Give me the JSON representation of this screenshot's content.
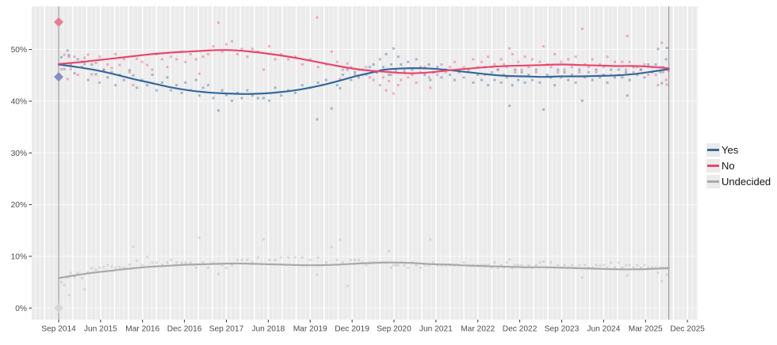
{
  "chart_data": {
    "type": "scatter",
    "title": "",
    "description": "Polling scatter with smoothed trend lines, Yes / No / Undecided, Sep 2014 - Dec 2025",
    "x_axis": {
      "tick_labels": [
        "Sep 2014",
        "Jun 2015",
        "Mar 2016",
        "Dec 2016",
        "Sep 2017",
        "Jun 2018",
        "Mar 2019",
        "Dec 2019",
        "Sep 2020",
        "Jun 2021",
        "Mar 2022",
        "Dec 2022",
        "Sep 2023",
        "Jun 2024",
        "Mar 2025",
        "Dec 2025"
      ],
      "tick_interval_months": 9,
      "minor_grid": "monthly",
      "major_grid": "quarterly"
    },
    "y_axis": {
      "tick_labels": [
        "0%",
        "10%",
        "20%",
        "30%",
        "40%",
        "50%"
      ],
      "tick_values": [
        0,
        10,
        20,
        30,
        40,
        50
      ],
      "range_pct": [
        -2.5,
        58.3
      ]
    },
    "legend": {
      "position": "right",
      "entries": [
        "Yes",
        "No",
        "Undecided"
      ]
    },
    "colors": {
      "panel_bg": "#ebebeb",
      "grid": "#ffffff",
      "axis_text": "#4d4d4d",
      "tick_mark": "#333333",
      "reference_line": "#9b9b9b",
      "legend_text": "#141414",
      "legend_key_bg": "#ebebeb"
    },
    "series": [
      {
        "name": "Yes",
        "color": "#36689b",
        "point_opacity": 0.42,
        "marker_color": "#7f8bc0",
        "trend": [
          [
            0,
            47.1
          ],
          [
            4,
            46.6
          ],
          [
            8,
            46.0
          ],
          [
            12,
            45.2
          ],
          [
            16,
            44.3
          ],
          [
            20,
            43.5
          ],
          [
            24,
            42.7
          ],
          [
            28,
            42.1
          ],
          [
            32,
            41.7
          ],
          [
            36,
            41.5
          ],
          [
            40,
            41.4
          ],
          [
            44,
            41.5
          ],
          [
            48,
            41.8
          ],
          [
            52,
            42.3
          ],
          [
            56,
            43.0
          ],
          [
            60,
            43.9
          ],
          [
            64,
            44.9
          ],
          [
            67,
            45.5
          ],
          [
            70,
            46.1
          ],
          [
            73,
            46.3
          ],
          [
            76,
            46.4
          ],
          [
            80,
            46.3
          ],
          [
            84,
            46.0
          ],
          [
            88,
            45.6
          ],
          [
            92,
            45.2
          ],
          [
            96,
            44.9
          ],
          [
            100,
            44.8
          ],
          [
            104,
            44.7
          ],
          [
            108,
            44.8
          ],
          [
            112,
            44.8
          ],
          [
            116,
            44.9
          ],
          [
            120,
            45.0
          ],
          [
            124,
            45.3
          ],
          [
            128,
            45.8
          ],
          [
            131,
            46.2
          ]
        ]
      },
      {
        "name": "No",
        "color": "#e8476f",
        "point_opacity": 0.4,
        "marker_color": "#e8788e",
        "trend": [
          [
            0,
            47.2
          ],
          [
            4,
            47.5
          ],
          [
            8,
            47.9
          ],
          [
            12,
            48.3
          ],
          [
            16,
            48.7
          ],
          [
            20,
            49.1
          ],
          [
            24,
            49.4
          ],
          [
            28,
            49.6
          ],
          [
            32,
            49.8
          ],
          [
            36,
            49.9
          ],
          [
            40,
            49.7
          ],
          [
            44,
            49.3
          ],
          [
            48,
            48.8
          ],
          [
            52,
            48.2
          ],
          [
            56,
            47.5
          ],
          [
            60,
            46.8
          ],
          [
            64,
            46.2
          ],
          [
            67,
            45.9
          ],
          [
            70,
            45.7
          ],
          [
            73,
            45.5
          ],
          [
            76,
            45.4
          ],
          [
            80,
            45.6
          ],
          [
            84,
            46.0
          ],
          [
            88,
            46.3
          ],
          [
            92,
            46.6
          ],
          [
            96,
            46.8
          ],
          [
            100,
            46.9
          ],
          [
            104,
            47.0
          ],
          [
            108,
            47.1
          ],
          [
            112,
            47.0
          ],
          [
            116,
            46.9
          ],
          [
            120,
            46.8
          ],
          [
            124,
            46.8
          ],
          [
            128,
            46.6
          ],
          [
            131,
            46.35
          ]
        ]
      },
      {
        "name": "Undecided",
        "color": "#a9a9a9",
        "point_opacity": 0.35,
        "marker_color": "#d6d6d6",
        "trend": [
          [
            0,
            5.8
          ],
          [
            4,
            6.4
          ],
          [
            8,
            6.9
          ],
          [
            12,
            7.3
          ],
          [
            16,
            7.7
          ],
          [
            20,
            8.0
          ],
          [
            24,
            8.2
          ],
          [
            28,
            8.4
          ],
          [
            32,
            8.5
          ],
          [
            36,
            8.6
          ],
          [
            40,
            8.6
          ],
          [
            44,
            8.5
          ],
          [
            48,
            8.4
          ],
          [
            52,
            8.3
          ],
          [
            56,
            8.3
          ],
          [
            60,
            8.4
          ],
          [
            64,
            8.6
          ],
          [
            67,
            8.7
          ],
          [
            70,
            8.8
          ],
          [
            73,
            8.8
          ],
          [
            76,
            8.7
          ],
          [
            80,
            8.5
          ],
          [
            84,
            8.4
          ],
          [
            88,
            8.2
          ],
          [
            92,
            8.1
          ],
          [
            96,
            8.0
          ],
          [
            100,
            7.9
          ],
          [
            104,
            7.9
          ],
          [
            108,
            7.8
          ],
          [
            112,
            7.7
          ],
          [
            116,
            7.6
          ],
          [
            120,
            7.5
          ],
          [
            124,
            7.5
          ],
          [
            128,
            7.6
          ],
          [
            131,
            7.7
          ]
        ]
      }
    ],
    "polls_note": "each poll = [months_after_Sep2014, Yes%, No%, Undecided%]",
    "polls": [
      [
        0.6,
        48.5,
        46.2,
        5.0
      ],
      [
        1.2,
        46.2,
        49.0,
        4.5
      ],
      [
        1.9,
        49.8,
        44.3,
        5.9
      ],
      [
        2.2,
        48.9,
        48.6,
        2.5
      ],
      [
        2.6,
        47.0,
        46.2,
        6.8
      ],
      [
        3.4,
        45.4,
        48.6,
        6.0
      ],
      [
        4.1,
        48.1,
        45.1,
        6.8
      ],
      [
        5.0,
        46.6,
        47.6,
        5.8
      ],
      [
        5.6,
        47.2,
        48.4,
        3.6
      ],
      [
        6.3,
        44.1,
        49.0,
        6.9
      ],
      [
        7.1,
        47.1,
        45.2,
        7.7
      ],
      [
        8.0,
        45.2,
        47.4,
        7.4
      ],
      [
        8.8,
        43.6,
        48.6,
        7.8
      ],
      [
        9.7,
        46.1,
        46.0,
        7.9
      ],
      [
        10.5,
        44.6,
        47.1,
        8.3
      ],
      [
        11.4,
        45.6,
        46.4,
        8.0
      ],
      [
        12.2,
        43.1,
        49.1,
        7.8
      ],
      [
        13.1,
        45.1,
        47.0,
        7.9
      ],
      [
        14.0,
        44.1,
        48.1,
        7.8
      ],
      [
        15.2,
        46.0,
        45.6,
        8.4
      ],
      [
        16.0,
        45.0,
        43.1,
        11.9
      ],
      [
        16.8,
        42.6,
        48.2,
        9.2
      ],
      [
        17.9,
        44.1,
        47.6,
        8.3
      ],
      [
        19.0,
        43.1,
        47.0,
        9.9
      ],
      [
        20.1,
        45.1,
        46.1,
        8.8
      ],
      [
        21.0,
        42.1,
        49.1,
        8.8
      ],
      [
        22.2,
        43.6,
        48.1,
        8.3
      ],
      [
        23.3,
        44.6,
        46.6,
        8.8
      ],
      [
        24.1,
        42.1,
        48.6,
        9.3
      ],
      [
        25.3,
        43.1,
        48.1,
        8.8
      ],
      [
        26.4,
        41.6,
        49.6,
        8.8
      ],
      [
        27.2,
        43.6,
        47.6,
        8.8
      ],
      [
        28.3,
        42.1,
        49.1,
        8.8
      ],
      [
        29.5,
        44.1,
        48.1,
        7.8
      ],
      [
        30.2,
        41.1,
        45.3,
        13.6
      ],
      [
        31.0,
        42.6,
        48.6,
        8.8
      ],
      [
        32.1,
        43.1,
        49.1,
        7.8
      ],
      [
        33.2,
        40.6,
        50.6,
        8.8
      ],
      [
        34.3,
        38.2,
        55.2,
        6.6
      ],
      [
        35.1,
        42.1,
        49.6,
        8.3
      ],
      [
        36.0,
        41.2,
        51.0,
        7.8
      ],
      [
        37.2,
        40.1,
        51.6,
        8.3
      ],
      [
        38.4,
        41.6,
        49.1,
        9.3
      ],
      [
        39.3,
        40.6,
        50.1,
        9.3
      ],
      [
        40.5,
        42.1,
        48.6,
        9.3
      ],
      [
        41.6,
        41.1,
        50.1,
        8.8
      ],
      [
        42.8,
        40.6,
        49.6,
        9.8
      ],
      [
        44.0,
        40.6,
        46.1,
        13.3
      ],
      [
        45.2,
        40.1,
        50.6,
        9.3
      ],
      [
        46.5,
        42.6,
        48.1,
        9.3
      ],
      [
        47.8,
        41.1,
        49.1,
        9.8
      ],
      [
        49.3,
        42.1,
        48.1,
        9.8
      ],
      [
        50.8,
        41.6,
        48.6,
        9.8
      ],
      [
        52.3,
        43.1,
        47.1,
        9.8
      ],
      [
        54.0,
        42.6,
        48.1,
        9.3
      ],
      [
        55.5,
        36.5,
        56.2,
        6.5
      ],
      [
        55.7,
        43.6,
        46.6,
        9.8
      ],
      [
        57.4,
        44.1,
        47.1,
        8.8
      ],
      [
        58.6,
        38.6,
        49.6,
        11.8
      ],
      [
        59.8,
        43.1,
        47.6,
        9.3
      ],
      [
        60.4,
        42.5,
        44.3,
        13.2
      ],
      [
        61.0,
        45.1,
        46.1,
        8.8
      ],
      [
        62.0,
        46.1,
        47.3,
        4.3
      ],
      [
        62.8,
        44.1,
        46.6,
        9.3
      ],
      [
        63.6,
        45.6,
        45.1,
        9.3
      ],
      [
        64.4,
        44.6,
        46.1,
        9.3
      ],
      [
        65.2,
        46.1,
        45.1,
        8.8
      ],
      [
        66.0,
        45.1,
        46.6,
        8.3
      ],
      [
        66.8,
        46.6,
        44.6,
        8.8
      ],
      [
        67.6,
        47.1,
        44.1,
        8.8
      ],
      [
        68.3,
        45.6,
        45.6,
        8.8
      ],
      [
        69.0,
        48.1,
        43.1,
        8.8
      ],
      [
        69.7,
        46.6,
        44.6,
        8.8
      ],
      [
        70.3,
        49.1,
        42.1,
        8.8
      ],
      [
        70.9,
        45.1,
        43.9,
        11.0
      ],
      [
        71.4,
        47.1,
        45.1,
        7.8
      ],
      [
        71.9,
        50.2,
        41.5,
        8.3
      ],
      [
        72.4,
        46.1,
        45.6,
        8.3
      ],
      [
        72.9,
        48.6,
        43.1,
        8.3
      ],
      [
        73.5,
        47.1,
        44.1,
        8.8
      ],
      [
        74.2,
        45.6,
        46.1,
        8.3
      ],
      [
        75.0,
        47.6,
        44.6,
        7.8
      ],
      [
        75.9,
        46.1,
        45.1,
        8.8
      ],
      [
        76.8,
        48.1,
        43.6,
        8.3
      ],
      [
        77.7,
        46.6,
        45.6,
        7.8
      ],
      [
        78.6,
        45.1,
        46.6,
        8.3
      ],
      [
        79.5,
        47.1,
        44.6,
        8.3
      ],
      [
        79.8,
        44.1,
        42.6,
        13.3
      ],
      [
        80.4,
        45.6,
        45.6,
        8.8
      ],
      [
        81.3,
        46.6,
        45.1,
        8.3
      ],
      [
        82.2,
        44.6,
        47.1,
        8.3
      ],
      [
        83.1,
        46.1,
        45.6,
        8.3
      ],
      [
        84.0,
        45.1,
        46.6,
        8.3
      ],
      [
        85.0,
        44.1,
        47.6,
        8.3
      ],
      [
        86.0,
        45.6,
        46.1,
        8.3
      ],
      [
        87.0,
        44.6,
        46.6,
        8.8
      ],
      [
        88.0,
        46.1,
        45.6,
        8.3
      ],
      [
        89.0,
        43.6,
        48.1,
        8.3
      ],
      [
        90.0,
        45.1,
        46.6,
        8.3
      ],
      [
        90.8,
        44.1,
        47.6,
        8.3
      ],
      [
        91.5,
        46.6,
        45.1,
        8.3
      ],
      [
        92.2,
        43.1,
        48.6,
        8.3
      ],
      [
        93.0,
        45.6,
        46.6,
        7.8
      ],
      [
        93.6,
        44.1,
        47.1,
        8.8
      ],
      [
        94.3,
        46.1,
        46.1,
        7.8
      ],
      [
        95.0,
        43.6,
        48.1,
        8.3
      ],
      [
        95.6,
        45.1,
        47.1,
        7.8
      ],
      [
        96.2,
        44.6,
        46.6,
        8.8
      ],
      [
        96.8,
        39.1,
        50.2,
        9.4
      ],
      [
        97.4,
        43.1,
        49.1,
        7.8
      ],
      [
        98.0,
        46.1,
        45.6,
        8.3
      ],
      [
        98.7,
        44.1,
        47.6,
        8.3
      ],
      [
        99.4,
        45.6,
        46.1,
        8.3
      ],
      [
        100.1,
        43.6,
        48.6,
        7.8
      ],
      [
        100.9,
        45.1,
        46.6,
        8.3
      ],
      [
        101.7,
        44.1,
        48.1,
        7.8
      ],
      [
        102.5,
        46.1,
        45.6,
        8.3
      ],
      [
        103.3,
        43.6,
        47.6,
        8.8
      ],
      [
        104.1,
        38.4,
        50.6,
        9.0
      ],
      [
        104.9,
        45.1,
        47.1,
        7.8
      ],
      [
        105.7,
        44.6,
        46.6,
        8.8
      ],
      [
        106.5,
        43.1,
        49.1,
        7.8
      ],
      [
        107.2,
        46.1,
        45.6,
        8.3
      ],
      [
        107.9,
        44.6,
        47.6,
        7.8
      ],
      [
        108.6,
        45.6,
        46.1,
        8.3
      ],
      [
        109.4,
        44.1,
        48.1,
        7.8
      ],
      [
        110.2,
        45.1,
        46.6,
        8.3
      ],
      [
        111.0,
        43.6,
        48.6,
        7.8
      ],
      [
        111.8,
        46.1,
        45.6,
        8.3
      ],
      [
        112.4,
        40.1,
        54.0,
        5.9
      ],
      [
        113.0,
        44.6,
        47.1,
        8.3
      ],
      [
        113.8,
        45.6,
        46.6,
        7.8
      ],
      [
        114.6,
        44.1,
        48.1,
        7.8
      ],
      [
        115.4,
        46.1,
        45.6,
        8.3
      ],
      [
        116.2,
        44.6,
        47.1,
        8.3
      ],
      [
        117.0,
        45.1,
        46.6,
        8.3
      ],
      [
        117.8,
        43.6,
        48.6,
        7.8
      ],
      [
        118.6,
        46.1,
        45.1,
        8.8
      ],
      [
        119.4,
        44.6,
        47.6,
        7.8
      ],
      [
        120.2,
        46.1,
        45.1,
        8.8
      ],
      [
        121.0,
        44.6,
        47.6,
        7.8
      ],
      [
        121.8,
        45.6,
        46.1,
        8.3
      ],
      [
        122.1,
        41.1,
        52.6,
        6.3
      ],
      [
        122.6,
        44.1,
        47.6,
        8.3
      ],
      [
        123.4,
        46.6,
        45.6,
        7.8
      ],
      [
        124.2,
        45.1,
        46.6,
        8.3
      ],
      [
        125.0,
        46.1,
        46.1,
        7.8
      ],
      [
        125.8,
        44.6,
        47.1,
        8.3
      ],
      [
        126.6,
        47.1,
        45.1,
        7.8
      ],
      [
        127.4,
        45.6,
        46.6,
        7.8
      ],
      [
        128.2,
        47.1,
        45.1,
        7.8
      ],
      [
        128.7,
        50.1,
        43.1,
        6.8
      ],
      [
        129.2,
        45.6,
        46.6,
        7.8
      ],
      [
        129.5,
        43.5,
        51.3,
        5.2
      ],
      [
        129.8,
        46.6,
        45.6,
        7.8
      ],
      [
        130.4,
        48.1,
        44.1,
        7.8
      ],
      [
        130.6,
        50.3,
        43.2,
        6.5
      ],
      [
        130.9,
        46.3,
        45.9,
        7.8
      ]
    ],
    "reference_markers": [
      {
        "series": "No",
        "t": 0,
        "value": 55.3,
        "shape": "diamond"
      },
      {
        "series": "Yes",
        "t": 0,
        "value": 44.7,
        "shape": "diamond"
      },
      {
        "series": "Undecided",
        "t": 0,
        "value": 0,
        "shape": "diamond"
      }
    ],
    "reference_lines_t": [
      0,
      131
    ]
  }
}
